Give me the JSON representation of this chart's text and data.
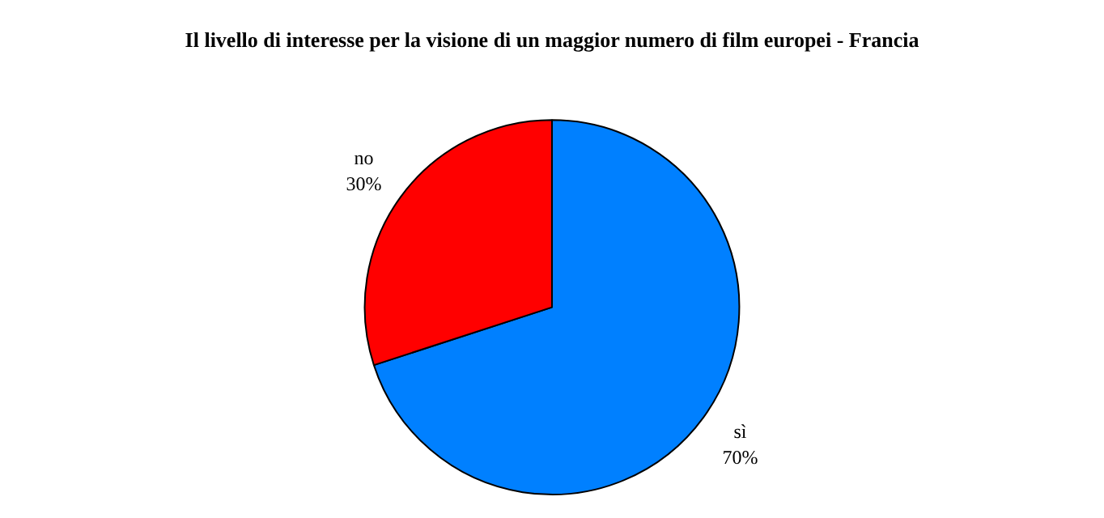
{
  "chart_data": {
    "type": "pie",
    "title": "Il livello di interesse per la visione di un maggior numero di film europei - Francia",
    "categories": [
      "sì",
      "no"
    ],
    "values": [
      70,
      30
    ],
    "colors": [
      "#0080ff",
      "#ff0000"
    ],
    "value_labels": [
      "70%",
      "30%"
    ],
    "legend": false
  }
}
